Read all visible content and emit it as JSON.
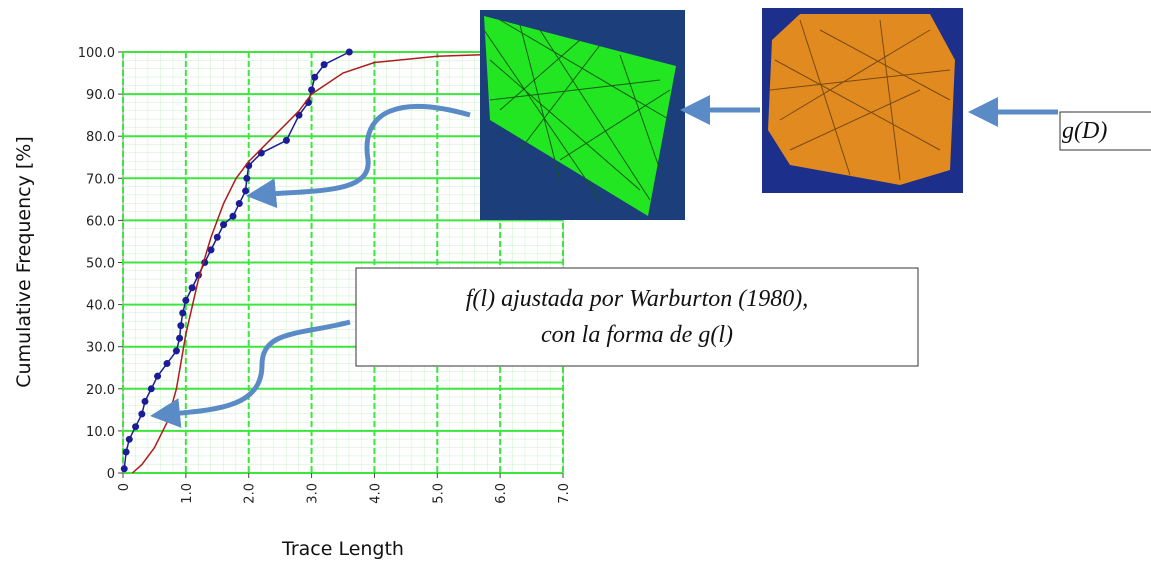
{
  "chart_data": {
    "type": "line",
    "xlabel": "Trace Length",
    "ylabel": "Cumulative Frequency [%]",
    "xlim": [
      0,
      7
    ],
    "ylim": [
      0,
      100
    ],
    "grid": true,
    "xticks": [
      0,
      {
        "value": 1,
        "label": "1.0"
      },
      {
        "value": 2,
        "label": "2.0"
      },
      {
        "value": 3,
        "label": "3.0"
      },
      {
        "value": 4,
        "label": "4.0"
      },
      {
        "value": 5,
        "label": "5.0"
      },
      {
        "value": 6,
        "label": "6.0"
      },
      {
        "value": 7,
        "label": "7.0"
      }
    ],
    "yticks": [
      0,
      {
        "value": 10,
        "label": "10.0"
      },
      {
        "value": 20,
        "label": "20.0"
      },
      {
        "value": 30,
        "label": "30.0"
      },
      {
        "value": 40,
        "label": "40.0"
      },
      {
        "value": 50,
        "label": "50.0"
      },
      {
        "value": 60,
        "label": "60.0"
      },
      {
        "value": 70,
        "label": "70.0"
      },
      {
        "value": 80,
        "label": "80.0"
      },
      {
        "value": 90,
        "label": "90.0"
      },
      {
        "value": 100,
        "label": "100.0"
      }
    ],
    "series": [
      {
        "color": "#1c1c96",
        "markers": true,
        "x": [
          0.02,
          0.05,
          0.1,
          0.2,
          0.3,
          0.35,
          0.45,
          0.55,
          0.7,
          0.85,
          0.9,
          0.92,
          0.95,
          1.0,
          1.1,
          1.2,
          1.3,
          1.4,
          1.5,
          1.6,
          1.75,
          1.85,
          1.95,
          1.97,
          2.0,
          2.2,
          2.6,
          2.8,
          2.95,
          3.0,
          3.05,
          3.2,
          3.6
        ],
        "values": [
          1,
          5,
          8,
          11,
          14,
          17,
          20,
          23,
          26,
          29,
          32,
          35,
          38,
          41,
          44,
          47,
          50,
          53,
          56,
          59,
          61,
          64,
          67,
          70,
          73,
          76,
          79,
          85,
          88,
          91,
          94,
          97,
          100
        ]
      },
      {
        "color": "#b01c1c",
        "markers": false,
        "x": [
          0.15,
          0.3,
          0.5,
          0.7,
          0.85,
          1.0,
          1.2,
          1.4,
          1.6,
          1.8,
          2.0,
          2.4,
          2.8,
          3.0,
          3.5,
          4.0,
          5.0,
          6.0,
          7.0
        ],
        "values": [
          0,
          2,
          6,
          12,
          20,
          33,
          46,
          56,
          64,
          70,
          74,
          80,
          86,
          90,
          95,
          97.5,
          99,
          99.5,
          99.8
        ]
      }
    ]
  },
  "annotations": {
    "fit_box": [
      "f(l) ajustada por Warburton (1980),",
      "con la forma de g(l)"
    ],
    "g_box": "g(D)"
  }
}
